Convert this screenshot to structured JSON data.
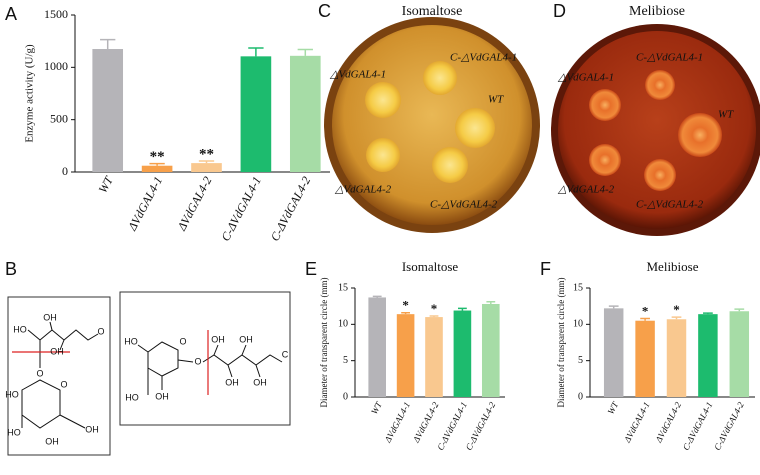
{
  "chart_data": [
    {
      "type": "bar",
      "panel": "A",
      "ylabel": "Enzyme activity (U/g)",
      "categories": [
        "WT",
        "ΔVdGAL4-1",
        "ΔVdGAL4-2",
        "C-ΔVdGAL4-1",
        "C-ΔVdGAL4-2"
      ],
      "values": [
        1175,
        60,
        85,
        1105,
        1110
      ],
      "errors": [
        90,
        20,
        20,
        80,
        60
      ],
      "colors": [
        "#b5b4b8",
        "#f7a04a",
        "#f9c88f",
        "#1dbb6e",
        "#a6dca6"
      ],
      "annotations": [
        {
          "index": 1,
          "text": "**"
        },
        {
          "index": 2,
          "text": "**"
        }
      ],
      "ylim": [
        0,
        1500
      ],
      "yticks": [
        0,
        500,
        1000,
        1500
      ]
    },
    {
      "type": "bar",
      "panel": "E",
      "title": "Isomaltose",
      "ylabel": "Diameter of transparent circle (mm)",
      "categories": [
        "WT",
        "ΔVdGAL4-1",
        "ΔVdGAL4-2",
        "C-ΔVdGAL4-1",
        "C-ΔVdGAL4-2"
      ],
      "values": [
        13.7,
        11.4,
        11.0,
        11.9,
        12.8
      ],
      "errors": [
        0.15,
        0.2,
        0.15,
        0.3,
        0.3
      ],
      "colors": [
        "#b5b4b8",
        "#f7a04a",
        "#f9c88f",
        "#1dbb6e",
        "#a6dca6"
      ],
      "annotations": [
        {
          "index": 1,
          "text": "*"
        },
        {
          "index": 2,
          "text": "*"
        }
      ],
      "ylim": [
        0,
        15
      ],
      "yticks": [
        0,
        5,
        10,
        15
      ]
    },
    {
      "type": "bar",
      "panel": "F",
      "title": "Melibiose",
      "ylabel": "Diameter of transparent circle (mm)",
      "categories": [
        "WT",
        "ΔVdGAL4-1",
        "ΔVdGAL4-2",
        "C-ΔVdGAL4-1",
        "C-ΔVdGAL4-2"
      ],
      "values": [
        12.2,
        10.5,
        10.7,
        11.4,
        11.8
      ],
      "errors": [
        0.3,
        0.3,
        0.3,
        0.15,
        0.3
      ],
      "colors": [
        "#b5b4b8",
        "#f7a04a",
        "#f9c88f",
        "#1dbb6e",
        "#a6dca6"
      ],
      "annotations": [
        {
          "index": 1,
          "text": "*"
        },
        {
          "index": 2,
          "text": "*"
        }
      ],
      "ylim": [
        0,
        15
      ],
      "yticks": [
        0,
        5,
        10,
        15
      ]
    }
  ],
  "plates": [
    {
      "panel": "C",
      "title": "Isomaltose",
      "labels": [
        "△VdGAL4-1",
        "C-△VdGAL4-1",
        "WT",
        "△VdGAL4-2",
        "C-△VdGAL4-2"
      ]
    },
    {
      "panel": "D",
      "title": "Melibiose",
      "labels": [
        "△VdGAL4-1",
        "C-△VdGAL4-1",
        "WT",
        "△VdGAL4-2",
        "C-△VdGAL4-2"
      ]
    }
  ],
  "structures": {
    "panel": "B",
    "molecule1": [
      "HO",
      "OH",
      "O",
      "OH",
      "O",
      "O",
      "HO",
      "HO",
      "OH",
      "OH"
    ],
    "molecule2": [
      "HO",
      "O",
      "O",
      "OH",
      "OH",
      "HO",
      "OH",
      "OH",
      "OH",
      "C"
    ]
  }
}
